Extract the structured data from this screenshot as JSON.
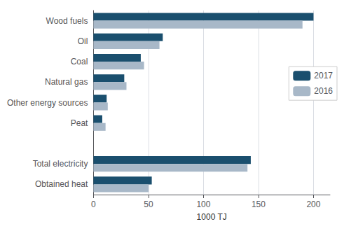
{
  "chart_data": {
    "type": "bar",
    "orientation": "horizontal",
    "categories": [
      "Obtained heat",
      "Total electricity",
      null,
      "Peat",
      "Other energy sources",
      "Natural gas",
      "Coal",
      "Oil",
      "Wood fuels"
    ],
    "series": [
      {
        "name": "2017",
        "color": "#1a4f6e",
        "values": [
          53,
          143,
          null,
          8,
          12,
          28,
          43,
          63,
          200
        ]
      },
      {
        "name": "2016",
        "color": "#a8b8c8",
        "values": [
          50,
          140,
          null,
          11,
          13,
          30,
          46,
          60,
          190
        ]
      }
    ],
    "xlabel": "1000 TJ",
    "xlim": [
      0,
      215
    ],
    "xticks": [
      0,
      50,
      100,
      150,
      200
    ],
    "grid": true,
    "legend": "upper right"
  }
}
